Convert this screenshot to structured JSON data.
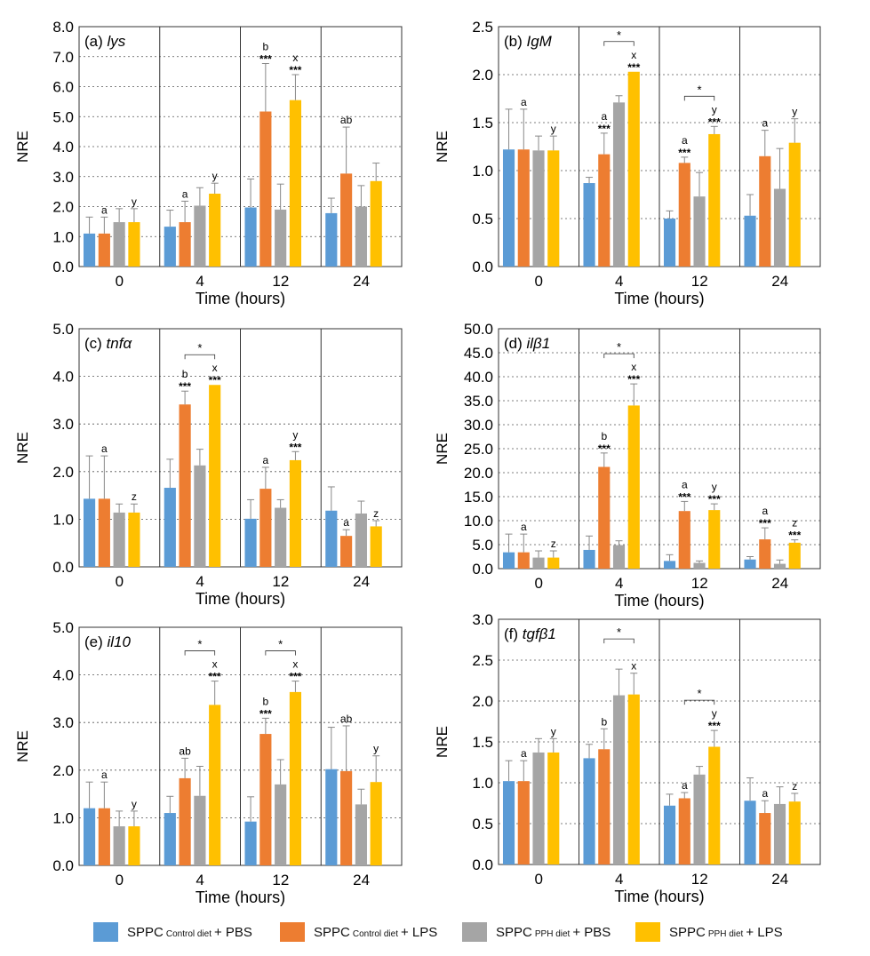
{
  "legend": [
    {
      "main": "SPPC",
      "sub": "Control diet",
      "tail": "+  PBS",
      "color": "#5B9BD5"
    },
    {
      "main": "SPPC",
      "sub": "Control diet",
      "tail": "+  LPS",
      "color": "#ED7D31"
    },
    {
      "main": "SPPC",
      "sub": "PPH diet",
      "tail": "+  PBS",
      "color": "#A5A5A5"
    },
    {
      "main": "SPPC",
      "sub": "PPH diet",
      "tail": "+  LPS",
      "color": "#FFC000"
    }
  ],
  "chart_data": [
    {
      "type": "bar",
      "id": "a",
      "panel_label": "(a)",
      "gene": "lys",
      "xlabel": "Time (hours)",
      "ylabel": "NRE",
      "categories": [
        "0",
        "4",
        "12",
        "24"
      ],
      "ylim": [
        0,
        8
      ],
      "yticks": [
        "0.0",
        "1.0",
        "2.0",
        "3.0",
        "4.0",
        "5.0",
        "6.0",
        "7.0",
        "8.0"
      ],
      "series": [
        {
          "name": "SPPC Control diet + PBS",
          "values": [
            1.1,
            1.33,
            1.97,
            1.78
          ],
          "errors": [
            0.55,
            0.55,
            0.95,
            0.5
          ]
        },
        {
          "name": "SPPC Control diet + LPS",
          "values": [
            1.1,
            1.48,
            5.17,
            3.1
          ],
          "errors": [
            0.55,
            0.7,
            1.6,
            1.55
          ]
        },
        {
          "name": "SPPC PPH diet + PBS",
          "values": [
            1.48,
            2.03,
            1.9,
            2.0
          ],
          "errors": [
            0.45,
            0.6,
            0.85,
            0.7
          ]
        },
        {
          "name": "SPPC PPH diet + LPS",
          "values": [
            1.48,
            2.43,
            5.55,
            2.85
          ],
          "errors": [
            0.45,
            0.35,
            0.85,
            0.6
          ]
        }
      ],
      "labels": [
        {
          "group": 0,
          "bar": 1,
          "text": "a"
        },
        {
          "group": 0,
          "bar": 3,
          "text": "y"
        },
        {
          "group": 1,
          "bar": 1,
          "text": "a"
        },
        {
          "group": 1,
          "bar": 3,
          "text": "y"
        },
        {
          "group": 2,
          "bar": 1,
          "text": "b",
          "stars": "***"
        },
        {
          "group": 2,
          "bar": 3,
          "text": "x",
          "stars": "***"
        },
        {
          "group": 3,
          "bar": 1,
          "text": "ab"
        }
      ],
      "brackets": []
    },
    {
      "type": "bar",
      "id": "b",
      "panel_label": "(b)",
      "gene": "IgM",
      "xlabel": "Time (hours)",
      "ylabel": "NRE",
      "categories": [
        "0",
        "4",
        "12",
        "24"
      ],
      "ylim": [
        0,
        2.5
      ],
      "yticks": [
        "0.0",
        "0.5",
        "1.0",
        "1.5",
        "2.0",
        "2.5"
      ],
      "series": [
        {
          "name": "SPPC Control diet + PBS",
          "values": [
            1.22,
            0.87,
            0.5,
            0.53
          ],
          "errors": [
            0.42,
            0.06,
            0.08,
            0.22
          ]
        },
        {
          "name": "SPPC Control diet + LPS",
          "values": [
            1.22,
            1.17,
            1.08,
            1.15
          ],
          "errors": [
            0.42,
            0.22,
            0.06,
            0.27
          ]
        },
        {
          "name": "SPPC PPH diet + PBS",
          "values": [
            1.21,
            1.71,
            0.73,
            0.81
          ],
          "errors": [
            0.15,
            0.07,
            0.25,
            0.42
          ]
        },
        {
          "name": "SPPC PPH diet + LPS",
          "values": [
            1.21,
            2.03,
            1.38,
            1.29
          ],
          "errors": [
            0.15,
            0.0,
            0.08,
            0.25
          ]
        }
      ],
      "labels": [
        {
          "group": 0,
          "bar": 1,
          "text": "a"
        },
        {
          "group": 0,
          "bar": 3,
          "text": "y"
        },
        {
          "group": 1,
          "bar": 1,
          "text": "a",
          "stars": "***"
        },
        {
          "group": 1,
          "bar": 3,
          "text": "x",
          "stars": "***"
        },
        {
          "group": 2,
          "bar": 1,
          "text": "a",
          "stars": "***"
        },
        {
          "group": 2,
          "bar": 3,
          "text": "y",
          "stars": "***"
        },
        {
          "group": 3,
          "bar": 1,
          "text": "a"
        },
        {
          "group": 3,
          "bar": 3,
          "text": "y"
        }
      ],
      "brackets": [
        {
          "group": 1,
          "text": "*"
        },
        {
          "group": 2,
          "text": "*"
        }
      ]
    },
    {
      "type": "bar",
      "id": "c",
      "panel_label": "(c)",
      "gene": "tnfα",
      "xlabel": "Time (hours)",
      "ylabel": "NRE",
      "categories": [
        "0",
        "4",
        "12",
        "24"
      ],
      "ylim": [
        0,
        5
      ],
      "yticks": [
        "0.0",
        "1.0",
        "2.0",
        "3.0",
        "4.0",
        "5.0"
      ],
      "series": [
        {
          "name": "SPPC Control diet + PBS",
          "values": [
            1.43,
            1.66,
            1.01,
            1.18
          ],
          "errors": [
            0.9,
            0.6,
            0.4,
            0.5
          ]
        },
        {
          "name": "SPPC Control diet + LPS",
          "values": [
            1.43,
            3.41,
            1.64,
            0.65
          ],
          "errors": [
            0.9,
            0.28,
            0.45,
            0.13
          ]
        },
        {
          "name": "SPPC PPH diet + PBS",
          "values": [
            1.14,
            2.13,
            1.24,
            1.12
          ],
          "errors": [
            0.18,
            0.34,
            0.17,
            0.26
          ]
        },
        {
          "name": "SPPC PPH diet + LPS",
          "values": [
            1.14,
            3.82,
            2.24,
            0.85
          ],
          "errors": [
            0.18,
            0.0,
            0.18,
            0.12
          ]
        }
      ],
      "labels": [
        {
          "group": 0,
          "bar": 1,
          "text": "a"
        },
        {
          "group": 0,
          "bar": 3,
          "text": "z"
        },
        {
          "group": 1,
          "bar": 1,
          "text": "b",
          "stars": "***"
        },
        {
          "group": 1,
          "bar": 3,
          "text": "x",
          "stars": "***"
        },
        {
          "group": 2,
          "bar": 1,
          "text": "a"
        },
        {
          "group": 2,
          "bar": 3,
          "text": "y",
          "stars": "***"
        },
        {
          "group": 3,
          "bar": 1,
          "text": "a"
        },
        {
          "group": 3,
          "bar": 3,
          "text": "z"
        }
      ],
      "brackets": [
        {
          "group": 1,
          "text": "*"
        }
      ]
    },
    {
      "type": "bar",
      "id": "d",
      "panel_label": "(d)",
      "gene": "ilβ1",
      "xlabel": "Time (hours)",
      "ylabel": "NRE",
      "categories": [
        "0",
        "4",
        "12",
        "24"
      ],
      "ylim": [
        0,
        50
      ],
      "yticks": [
        "0.0",
        "5.0",
        "10.0",
        "15.0",
        "20.0",
        "25.0",
        "30.0",
        "35.0",
        "40.0",
        "45.0",
        "50.0"
      ],
      "series": [
        {
          "name": "SPPC Control diet + PBS",
          "values": [
            3.4,
            3.9,
            1.6,
            1.9
          ],
          "errors": [
            3.8,
            2.9,
            1.3,
            0.6
          ]
        },
        {
          "name": "SPPC Control diet + LPS",
          "values": [
            3.4,
            21.2,
            12.0,
            6.1
          ],
          "errors": [
            3.8,
            2.9,
            2.0,
            2.4
          ]
        },
        {
          "name": "SPPC PPH diet + PBS",
          "values": [
            2.3,
            4.9,
            1.2,
            1.0
          ],
          "errors": [
            1.4,
            0.9,
            0.4,
            0.8
          ]
        },
        {
          "name": "SPPC PPH diet + LPS",
          "values": [
            2.3,
            34.0,
            12.2,
            5.4
          ],
          "errors": [
            1.4,
            4.5,
            1.3,
            0.6
          ]
        }
      ],
      "labels": [
        {
          "group": 0,
          "bar": 1,
          "text": "a"
        },
        {
          "group": 0,
          "bar": 3,
          "text": "z"
        },
        {
          "group": 1,
          "bar": 1,
          "text": "b",
          "stars": "***"
        },
        {
          "group": 1,
          "bar": 3,
          "text": "x",
          "stars": "***"
        },
        {
          "group": 2,
          "bar": 1,
          "text": "a",
          "stars": "***"
        },
        {
          "group": 2,
          "bar": 3,
          "text": "y",
          "stars": "***"
        },
        {
          "group": 3,
          "bar": 1,
          "text": "a",
          "stars": "***"
        },
        {
          "group": 3,
          "bar": 3,
          "text": "z",
          "stars": "***"
        }
      ],
      "brackets": [
        {
          "group": 1,
          "text": "*"
        }
      ]
    },
    {
      "type": "bar",
      "id": "e",
      "panel_label": "(e)",
      "gene": "il10",
      "xlabel": "Time (hours)",
      "ylabel": "NRE",
      "categories": [
        "0",
        "4",
        "12",
        "24"
      ],
      "ylim": [
        0,
        5
      ],
      "yticks": [
        "0.0",
        "1.0",
        "2.0",
        "3.0",
        "4.0",
        "5.0"
      ],
      "series": [
        {
          "name": "SPPC Control diet + PBS",
          "values": [
            1.2,
            1.1,
            0.92,
            2.02
          ],
          "errors": [
            0.55,
            0.35,
            0.52,
            0.88
          ]
        },
        {
          "name": "SPPC Control diet + LPS",
          "values": [
            1.2,
            1.83,
            2.76,
            1.98
          ],
          "errors": [
            0.55,
            0.42,
            0.33,
            0.95
          ]
        },
        {
          "name": "SPPC PPH diet + PBS",
          "values": [
            0.82,
            1.46,
            1.7,
            1.28
          ],
          "errors": [
            0.32,
            0.62,
            0.52,
            0.32
          ]
        },
        {
          "name": "SPPC PPH diet + LPS",
          "values": [
            0.82,
            3.37,
            3.64,
            1.75
          ],
          "errors": [
            0.32,
            0.5,
            0.23,
            0.55
          ]
        }
      ],
      "labels": [
        {
          "group": 0,
          "bar": 1,
          "text": "a"
        },
        {
          "group": 0,
          "bar": 3,
          "text": "y"
        },
        {
          "group": 1,
          "bar": 1,
          "text": "ab"
        },
        {
          "group": 1,
          "bar": 3,
          "text": "x",
          "stars": "***"
        },
        {
          "group": 2,
          "bar": 1,
          "text": "b",
          "stars": "***"
        },
        {
          "group": 2,
          "bar": 3,
          "text": "x",
          "stars": "***"
        },
        {
          "group": 3,
          "bar": 1,
          "text": "ab"
        },
        {
          "group": 3,
          "bar": 3,
          "text": "y"
        }
      ],
      "brackets": [
        {
          "group": 1,
          "text": "*"
        },
        {
          "group": 2,
          "text": "*"
        }
      ]
    },
    {
      "type": "bar",
      "id": "f",
      "panel_label": "(f)",
      "gene": "tgfβ1",
      "xlabel": "Time (hours)",
      "ylabel": "NRE",
      "categories": [
        "0",
        "4",
        "12",
        "24"
      ],
      "ylim": [
        0,
        3
      ],
      "yticks": [
        "0.0",
        "0.5",
        "1.0",
        "1.5",
        "2.0",
        "2.5",
        "3.0"
      ],
      "series": [
        {
          "name": "SPPC Control diet + PBS",
          "values": [
            1.02,
            1.3,
            0.72,
            0.78
          ],
          "errors": [
            0.25,
            0.17,
            0.14,
            0.28
          ]
        },
        {
          "name": "SPPC Control diet + LPS",
          "values": [
            1.02,
            1.41,
            0.81,
            0.63
          ],
          "errors": [
            0.25,
            0.25,
            0.07,
            0.15
          ]
        },
        {
          "name": "SPPC PPH diet + PBS",
          "values": [
            1.37,
            2.07,
            1.1,
            0.74
          ],
          "errors": [
            0.17,
            0.32,
            0.1,
            0.21
          ]
        },
        {
          "name": "SPPC PPH diet + LPS",
          "values": [
            1.37,
            2.08,
            1.44,
            0.77
          ],
          "errors": [
            0.17,
            0.26,
            0.2,
            0.1
          ]
        }
      ],
      "labels": [
        {
          "group": 0,
          "bar": 1,
          "text": "a"
        },
        {
          "group": 0,
          "bar": 3,
          "text": "y"
        },
        {
          "group": 1,
          "bar": 1,
          "text": "b"
        },
        {
          "group": 1,
          "bar": 3,
          "text": "x"
        },
        {
          "group": 2,
          "bar": 1,
          "text": "a"
        },
        {
          "group": 2,
          "bar": 3,
          "text": "y",
          "stars": "***"
        },
        {
          "group": 3,
          "bar": 1,
          "text": "a"
        },
        {
          "group": 3,
          "bar": 3,
          "text": "z"
        }
      ],
      "brackets": [
        {
          "group": 1,
          "text": "*"
        },
        {
          "group": 2,
          "text": "*"
        }
      ]
    }
  ]
}
